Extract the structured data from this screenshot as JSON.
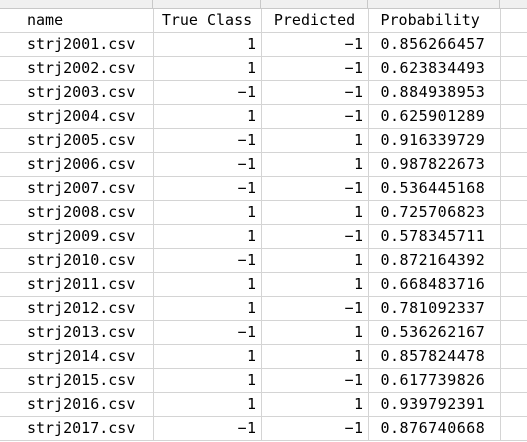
{
  "columns": {
    "name": "name",
    "true_class": "True Class",
    "predicted": "Predicted",
    "probability": "Probability"
  },
  "rows": [
    {
      "name": "strj2001.csv",
      "true_class": "1",
      "predicted": "−1",
      "probability": "0.856266457"
    },
    {
      "name": "strj2002.csv",
      "true_class": "1",
      "predicted": "−1",
      "probability": "0.623834493"
    },
    {
      "name": "strj2003.csv",
      "true_class": "−1",
      "predicted": "−1",
      "probability": "0.884938953"
    },
    {
      "name": "strj2004.csv",
      "true_class": "1",
      "predicted": "−1",
      "probability": "0.625901289"
    },
    {
      "name": "strj2005.csv",
      "true_class": "−1",
      "predicted": "1",
      "probability": "0.916339729"
    },
    {
      "name": "strj2006.csv",
      "true_class": "−1",
      "predicted": "1",
      "probability": "0.987822673"
    },
    {
      "name": "strj2007.csv",
      "true_class": "−1",
      "predicted": "−1",
      "probability": "0.536445168"
    },
    {
      "name": "strj2008.csv",
      "true_class": "1",
      "predicted": "1",
      "probability": "0.725706823"
    },
    {
      "name": "strj2009.csv",
      "true_class": "1",
      "predicted": "−1",
      "probability": "0.578345711"
    },
    {
      "name": "strj2010.csv",
      "true_class": "−1",
      "predicted": "1",
      "probability": "0.872164392"
    },
    {
      "name": "strj2011.csv",
      "true_class": "1",
      "predicted": "1",
      "probability": "0.668483716"
    },
    {
      "name": "strj2012.csv",
      "true_class": "1",
      "predicted": "−1",
      "probability": "0.781092337"
    },
    {
      "name": "strj2013.csv",
      "true_class": "−1",
      "predicted": "1",
      "probability": "0.536262167"
    },
    {
      "name": "strj2014.csv",
      "true_class": "1",
      "predicted": "1",
      "probability": "0.857824478"
    },
    {
      "name": "strj2015.csv",
      "true_class": "1",
      "predicted": "−1",
      "probability": "0.617739826"
    },
    {
      "name": "strj2016.csv",
      "true_class": "1",
      "predicted": "1",
      "probability": "0.939792391"
    },
    {
      "name": "strj2017.csv",
      "true_class": "−1",
      "predicted": "−1",
      "probability": "0.876740668"
    }
  ]
}
